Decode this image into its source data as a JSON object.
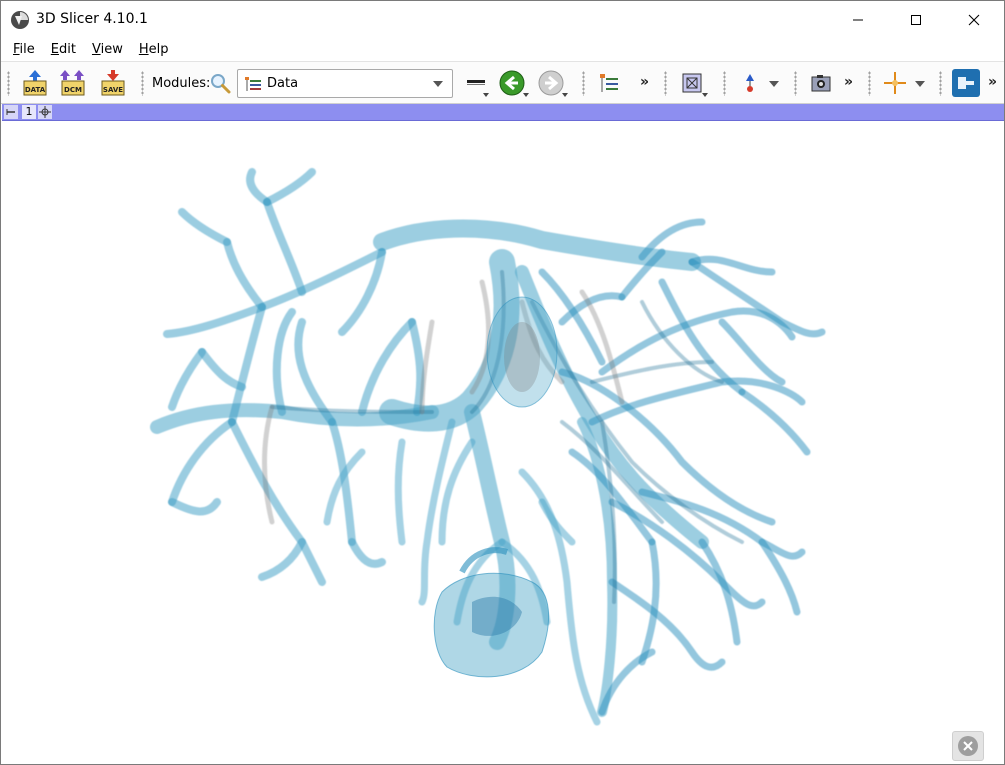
{
  "window": {
    "title": "3D Slicer 4.10.1",
    "controls": [
      "minimize",
      "maximize",
      "close"
    ]
  },
  "menu": {
    "items": [
      {
        "label": "File",
        "accel": "F"
      },
      {
        "label": "Edit",
        "accel": "E"
      },
      {
        "label": "View",
        "accel": "V"
      },
      {
        "label": "Help",
        "accel": "H"
      }
    ]
  },
  "toolbar": {
    "load_data_label": "DATA",
    "load_dicom_label": "DCM",
    "save_label": "SAVE",
    "modules_label": "Modules:",
    "module_selected": "Data",
    "more_symbol": "»"
  },
  "view": {
    "label": "1",
    "background_color": "#ffffff",
    "bar_color": "#8d8ef0",
    "model_color": "#4da6c8",
    "model_description": "liver vessel tree 3D model, semi-transparent"
  },
  "colors": {
    "accent_blue": "#2a6fd6",
    "back_arrow_green": "#3a9a2a",
    "data_icon_yellow": "#f0d36a"
  }
}
